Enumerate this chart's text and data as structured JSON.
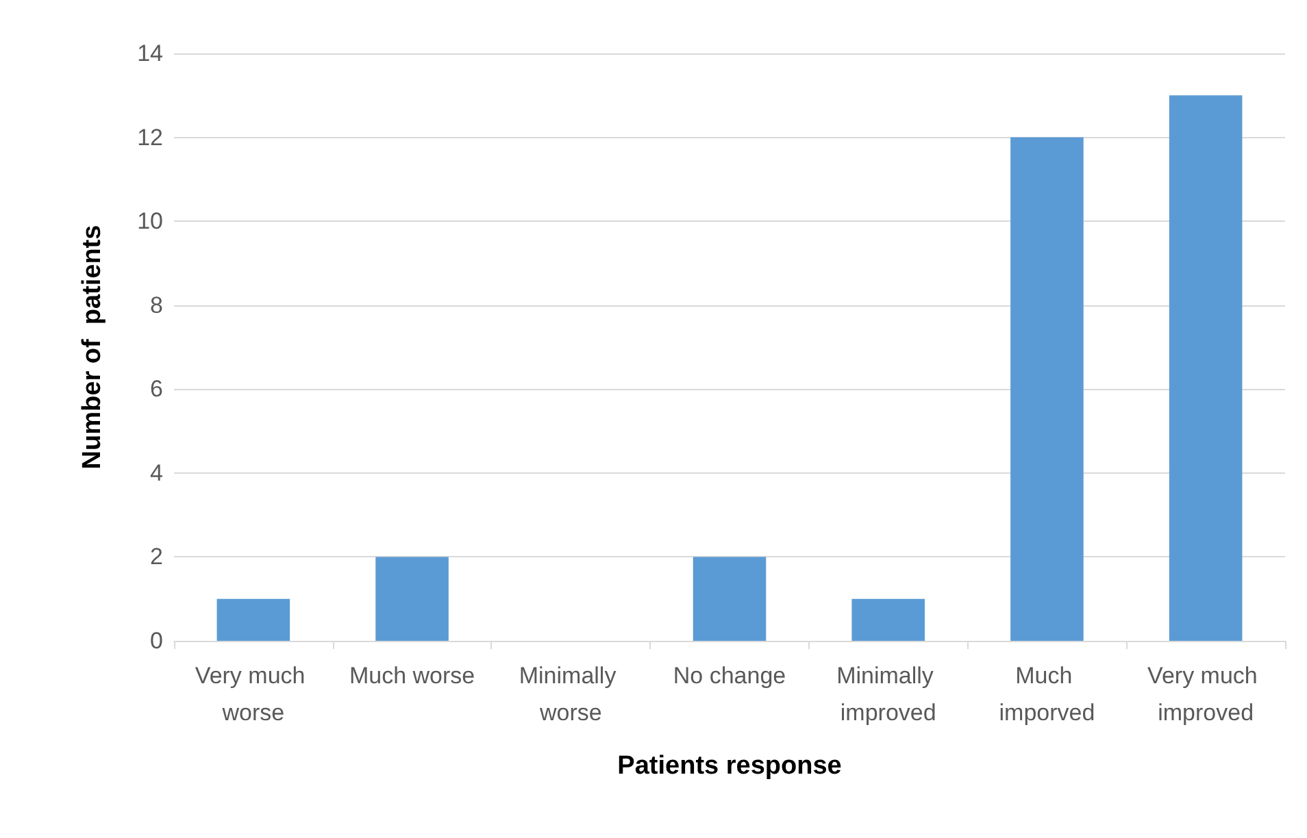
{
  "chart_data": {
    "type": "bar",
    "xlabel": "Patients response",
    "ylabel": "Number of  patients",
    "categories": [
      "Very much worse",
      "Much worse",
      "Minimally worse",
      "No change",
      "Minimally improved",
      "Much imporved",
      "Very much improved"
    ],
    "values": [
      1,
      2,
      0,
      2,
      1,
      12,
      13
    ],
    "color": "#5b9bd5",
    "ylim": [
      0,
      14
    ],
    "yticks": [
      0,
      2,
      4,
      6,
      8,
      10,
      12,
      14
    ],
    "grid": "y"
  }
}
